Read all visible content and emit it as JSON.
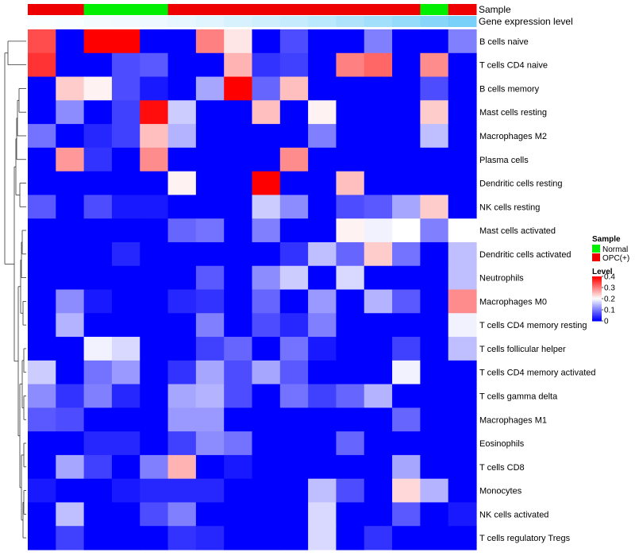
{
  "chart_data": {
    "type": "heatmap",
    "annotation_labels": {
      "sample": "Sample",
      "expression": "Gene expression level"
    },
    "sample_groups": [
      "OPC(+)",
      "OPC(+)",
      "Normal",
      "Normal",
      "Normal",
      "OPC(+)",
      "OPC(+)",
      "OPC(+)",
      "OPC(+)",
      "OPC(+)",
      "OPC(+)",
      "OPC(+)",
      "OPC(+)",
      "OPC(+)",
      "Normal",
      "OPC(+)"
    ],
    "expression_annotation": [
      0.02,
      0.04,
      0.06,
      0.08,
      0.1,
      0.13,
      0.17,
      0.22,
      0.27,
      0.33,
      0.39,
      0.46,
      0.53,
      0.6,
      0.68,
      0.76
    ],
    "rows": [
      "B cells naive",
      "T cells CD4 naive",
      "B cells memory",
      "Mast cells resting",
      "Macrophages M2",
      "Plasma cells",
      "Dendritic cells resting",
      "NK cells resting",
      "Mast cells activated",
      "Dendritic cells activated",
      "Neutrophils",
      "Macrophages M0",
      "T cells CD4 memory resting",
      "T cells follicular helper",
      "T cells CD4 memory activated",
      "T cells gamma delta",
      "Macrophages M1",
      "Eosinophils",
      "T cells CD8",
      "Monocytes",
      "NK cells activated",
      "T cells regulatory  Tregs"
    ],
    "values": [
      [
        0.34,
        0,
        0.4,
        0.4,
        0,
        0,
        0.3,
        0.22,
        0,
        0.06,
        0,
        0,
        0.1,
        0,
        0,
        0.1
      ],
      [
        0.36,
        0,
        0,
        0.06,
        0.07,
        0,
        0,
        0.26,
        0.04,
        0.05,
        0,
        0.3,
        0.32,
        0,
        0.29,
        0
      ],
      [
        0,
        0.24,
        0.21,
        0.06,
        0.02,
        0,
        0.13,
        0.4,
        0.08,
        0.25,
        0,
        0,
        0,
        0,
        0.06,
        0
      ],
      [
        0,
        0.11,
        0,
        0.05,
        0.39,
        0.16,
        0,
        0,
        0.25,
        0,
        0.21,
        0,
        0,
        0,
        0.24,
        0
      ],
      [
        0.09,
        0,
        0.03,
        0.05,
        0.25,
        0.14,
        0,
        0,
        0,
        0,
        0.1,
        0,
        0,
        0,
        0.15,
        0
      ],
      [
        0,
        0.28,
        0.04,
        0,
        0.29,
        0,
        0,
        0,
        0,
        0.29,
        0,
        0,
        0,
        0,
        0,
        0
      ],
      [
        0,
        0,
        0,
        0,
        0,
        0.21,
        0,
        0,
        0.4,
        0,
        0,
        0.25,
        0,
        0,
        0,
        0
      ],
      [
        0.07,
        0,
        0.06,
        0.02,
        0.02,
        0,
        0,
        0,
        0.16,
        0.11,
        0,
        0.06,
        0.07,
        0.13,
        0.24,
        0
      ],
      [
        0,
        0,
        0,
        0,
        0,
        0.08,
        0.09,
        0,
        0.1,
        0,
        0,
        0.21,
        0.19,
        0.2,
        0.1,
        0.2
      ],
      [
        0,
        0,
        0,
        0.03,
        0,
        0,
        0,
        0,
        0,
        0.04,
        0.15,
        0.08,
        0.24,
        0.09,
        0,
        0.15
      ],
      [
        0,
        0,
        0,
        0,
        0,
        0,
        0.07,
        0,
        0.11,
        0.16,
        0,
        0.17,
        0,
        0,
        0,
        0.15
      ],
      [
        0,
        0.11,
        0.02,
        0,
        0,
        0.03,
        0.04,
        0,
        0.08,
        0,
        0.12,
        0,
        0.14,
        0.07,
        0,
        0.29
      ],
      [
        0,
        0.14,
        0,
        0,
        0,
        0,
        0.1,
        0,
        0.06,
        0.03,
        0.1,
        0,
        0,
        0,
        0,
        0.19
      ],
      [
        0,
        0,
        0.19,
        0.17,
        0,
        0,
        0.05,
        0.08,
        0,
        0.09,
        0.02,
        0,
        0,
        0.05,
        0,
        0.15
      ],
      [
        0.16,
        0,
        0.09,
        0.12,
        0,
        0.04,
        0.13,
        0.06,
        0.13,
        0.07,
        0,
        0,
        0,
        0.19,
        0,
        0
      ],
      [
        0.11,
        0.04,
        0.1,
        0.03,
        0,
        0.13,
        0.14,
        0.06,
        0,
        0.09,
        0.05,
        0.08,
        0.14,
        0,
        0,
        0
      ],
      [
        0.07,
        0.06,
        0,
        0,
        0,
        0.12,
        0.12,
        0,
        0,
        0,
        0,
        0,
        0,
        0.08,
        0,
        0
      ],
      [
        0,
        0,
        0.03,
        0.03,
        0,
        0.05,
        0.11,
        0.09,
        0,
        0,
        0,
        0.08,
        0,
        0,
        0,
        0
      ],
      [
        0,
        0.13,
        0.05,
        0,
        0.1,
        0.26,
        0,
        0.02,
        0,
        0,
        0,
        0,
        0,
        0.13,
        0,
        0
      ],
      [
        0.02,
        0,
        0,
        0.02,
        0.03,
        0.03,
        0.03,
        0,
        0,
        0,
        0.15,
        0.06,
        0,
        0.23,
        0.14,
        0
      ],
      [
        0,
        0.15,
        0,
        0,
        0.06,
        0.1,
        0,
        0,
        0,
        0,
        0.17,
        0,
        0,
        0.07,
        0,
        0.02
      ],
      [
        0,
        0.05,
        0,
        0,
        0,
        0.04,
        0.03,
        0,
        0,
        0,
        0.17,
        0,
        0.04,
        0,
        0,
        0
      ]
    ],
    "legend": {
      "sample_title": "Sample",
      "sample_entries": [
        {
          "label": "Normal",
          "color": "#00EE00"
        },
        {
          "label": "OPC(+)",
          "color": "#EE0000"
        }
      ],
      "level_title": "Level",
      "level_ticks": [
        "0.4",
        "0.3",
        "0.2",
        "0.1",
        "0"
      ],
      "level_tick_values": [
        0.4,
        0.3,
        0.2,
        0.1,
        0
      ]
    },
    "color_scale": {
      "low": "#0000FF",
      "mid": "#FFFFFF",
      "high": "#FF0000",
      "min": 0,
      "mid_value": 0.2,
      "max": 0.4
    },
    "expression_colors": {
      "low": "#FFFFFF",
      "high": "#4FC3F7"
    }
  }
}
